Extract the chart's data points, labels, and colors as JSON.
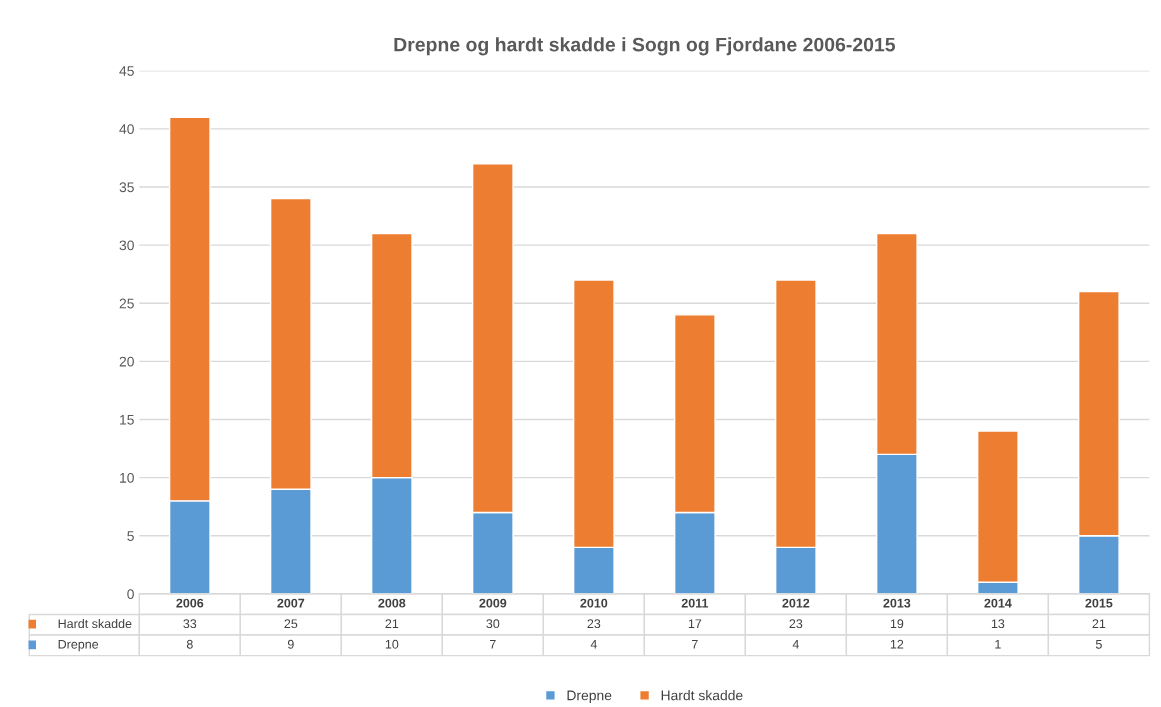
{
  "chart_data": {
    "type": "bar",
    "title": "Drepne og hardt skadde i Sogn og Fjordane 2006-2015",
    "categories": [
      "2006",
      "2007",
      "2008",
      "2009",
      "2010",
      "2011",
      "2012",
      "2013",
      "2014",
      "2015"
    ],
    "series": [
      {
        "name": "Drepne",
        "color": "#5b9bd5",
        "values": [
          8,
          9,
          10,
          7,
          4,
          7,
          4,
          12,
          1,
          5
        ]
      },
      {
        "name": "Hardt skadde",
        "color": "#ed7d31",
        "values": [
          33,
          25,
          21,
          30,
          23,
          17,
          23,
          19,
          13,
          21
        ]
      }
    ],
    "stacked": true,
    "ylim": [
      0,
      45
    ],
    "yticks": [
      0,
      5,
      10,
      15,
      20,
      25,
      30,
      35,
      40,
      45
    ],
    "grid": "y",
    "legend": "bottom",
    "data_labels": true
  }
}
